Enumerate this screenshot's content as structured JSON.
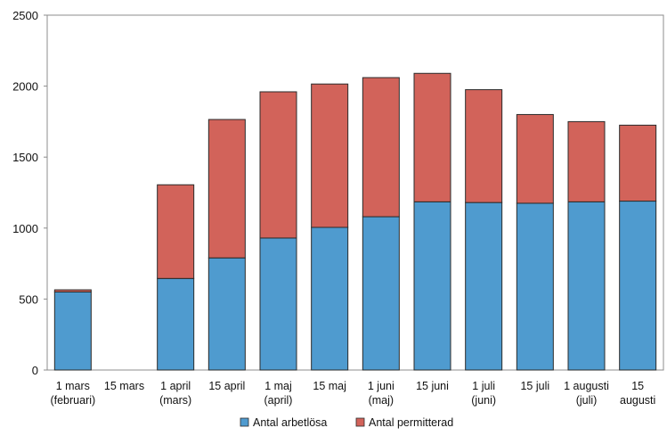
{
  "chart_data": {
    "type": "bar",
    "stacked": true,
    "title": "",
    "xlabel": "",
    "ylabel": "",
    "ylim": [
      0,
      2500
    ],
    "yticks": [
      0,
      500,
      1000,
      1500,
      2000,
      2500
    ],
    "grid": false,
    "legend_position": "bottom-center",
    "categories": [
      [
        "1 mars",
        "(februari)"
      ],
      [
        "15 mars"
      ],
      [
        "1 april",
        "(mars)"
      ],
      [
        "15 april"
      ],
      [
        "1 maj",
        "(april)"
      ],
      [
        "15 maj"
      ],
      [
        "1 juni",
        "(maj)"
      ],
      [
        "15 juni"
      ],
      [
        "1 juli",
        "(juni)"
      ],
      [
        "15 juli"
      ],
      [
        "1 augusti",
        "(juli)"
      ],
      [
        "15",
        "augusti"
      ]
    ],
    "series": [
      {
        "name": "Antal arbetlösa",
        "color": "#4f9bcf",
        "values": [
          550,
          null,
          645,
          790,
          930,
          1005,
          1080,
          1185,
          1180,
          1175,
          1185,
          1190
        ]
      },
      {
        "name": "Antal permitterad",
        "color": "#d2635a",
        "values": [
          15,
          null,
          660,
          975,
          1030,
          1010,
          980,
          905,
          795,
          625,
          565,
          535
        ]
      }
    ]
  }
}
